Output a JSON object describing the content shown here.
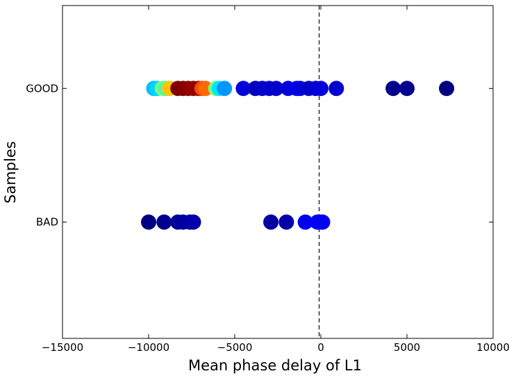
{
  "chart_data": {
    "type": "scatter",
    "title": "",
    "xlabel": "Mean phase delay of L1",
    "ylabel": "Samples",
    "xlim": [
      -15000,
      10000
    ],
    "xticks": [
      -15000,
      -10000,
      -5000,
      0,
      5000,
      10000
    ],
    "xtick_labels": [
      "−15000",
      "−10000",
      "−5000",
      "0",
      "5000",
      "10000"
    ],
    "categories": [
      "BAD",
      "GOOD"
    ],
    "ylim": [
      -0.87,
      1.62
    ],
    "grid": false,
    "vline": {
      "x": -100,
      "style": "dashed"
    },
    "series": [
      {
        "category": "GOOD",
        "points": [
          {
            "x": -9700,
            "color": "#00bfff"
          },
          {
            "x": -9500,
            "color": "#00d4ff"
          },
          {
            "x": -9200,
            "color": "#7dff7a"
          },
          {
            "x": -9000,
            "color": "#3fffb7"
          },
          {
            "x": -8800,
            "color": "#ffc400"
          },
          {
            "x": -8300,
            "color": "#7f0000"
          },
          {
            "x": -8000,
            "color": "#800000"
          },
          {
            "x": -7700,
            "color": "#8b0000"
          },
          {
            "x": -7400,
            "color": "#990000"
          },
          {
            "x": -7100,
            "color": "#8b0000"
          },
          {
            "x": -6900,
            "color": "#ff4500"
          },
          {
            "x": -6700,
            "color": "#ff6a00"
          },
          {
            "x": -6100,
            "color": "#7dff7a"
          },
          {
            "x": -5900,
            "color": "#00e5ff"
          },
          {
            "x": -5600,
            "color": "#0096ff"
          },
          {
            "x": -4500,
            "color": "#0000dd"
          },
          {
            "x": -3800,
            "color": "#0000bb"
          },
          {
            "x": -3400,
            "color": "#0000c8"
          },
          {
            "x": -3000,
            "color": "#0000cc"
          },
          {
            "x": -2600,
            "color": "#0000cc"
          },
          {
            "x": -1900,
            "color": "#0000dd"
          },
          {
            "x": -1400,
            "color": "#0000ee"
          },
          {
            "x": -1200,
            "color": "#0000dd"
          },
          {
            "x": -700,
            "color": "#0000cc"
          },
          {
            "x": -300,
            "color": "#0000cc"
          },
          {
            "x": 0,
            "color": "#0000dd"
          },
          {
            "x": 900,
            "color": "#0000cc"
          },
          {
            "x": 4200,
            "color": "#00008b"
          },
          {
            "x": 5000,
            "color": "#000090"
          },
          {
            "x": 7300,
            "color": "#000080"
          }
        ]
      },
      {
        "category": "BAD",
        "points": [
          {
            "x": -10000,
            "color": "#000080"
          },
          {
            "x": -9100,
            "color": "#000090"
          },
          {
            "x": -8300,
            "color": "#000098"
          },
          {
            "x": -8000,
            "color": "#00009c"
          },
          {
            "x": -7600,
            "color": "#0000a0"
          },
          {
            "x": -7400,
            "color": "#0000a8"
          },
          {
            "x": -2900,
            "color": "#0000a0"
          },
          {
            "x": -2000,
            "color": "#0000a8"
          },
          {
            "x": -900,
            "color": "#0000ee"
          },
          {
            "x": -200,
            "color": "#0000ff"
          },
          {
            "x": 0,
            "color": "#0000ff"
          },
          {
            "x": 100,
            "color": "#0000ee"
          }
        ]
      }
    ]
  }
}
